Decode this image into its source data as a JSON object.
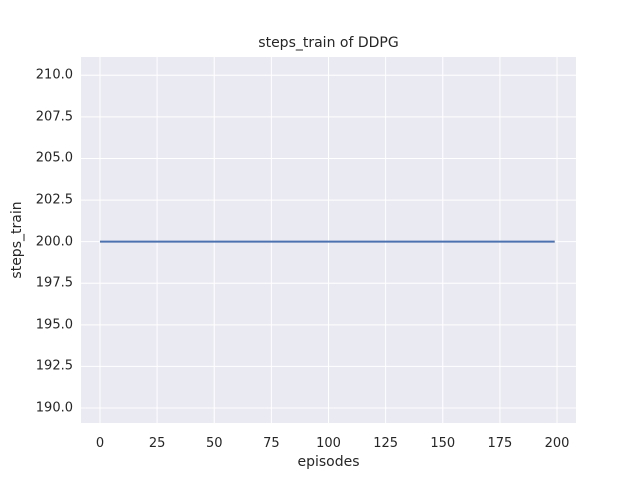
{
  "chart_data": {
    "type": "line",
    "title": "steps_train of DDPG",
    "xlabel": "episodes",
    "ylabel": "steps_train",
    "xlim": [
      -8.3,
      208.3
    ],
    "ylim": [
      189.1,
      211.1
    ],
    "xticks": {
      "values": [
        0,
        25,
        50,
        75,
        100,
        125,
        150,
        175,
        200
      ],
      "labels": [
        "0",
        "25",
        "50",
        "75",
        "100",
        "125",
        "150",
        "175",
        "200"
      ]
    },
    "yticks": {
      "values": [
        190.0,
        192.5,
        195.0,
        197.5,
        200.0,
        202.5,
        205.0,
        207.5,
        210.0
      ],
      "labels": [
        "190.0",
        "192.5",
        "195.0",
        "197.5",
        "200.0",
        "202.5",
        "205.0",
        "207.5",
        "210.0"
      ]
    },
    "grid": true,
    "legend": null,
    "series": [
      {
        "name": "steps_train",
        "color": "#4c72b0",
        "line_width": 2,
        "x": [
          0,
          199
        ],
        "y": [
          200,
          200
        ]
      }
    ],
    "colors": {
      "figure_background": "#ffffff",
      "axes_background": "#eaeaf2",
      "grid": "#ffffff",
      "text": "#262626",
      "line": "#4c72b0"
    }
  }
}
